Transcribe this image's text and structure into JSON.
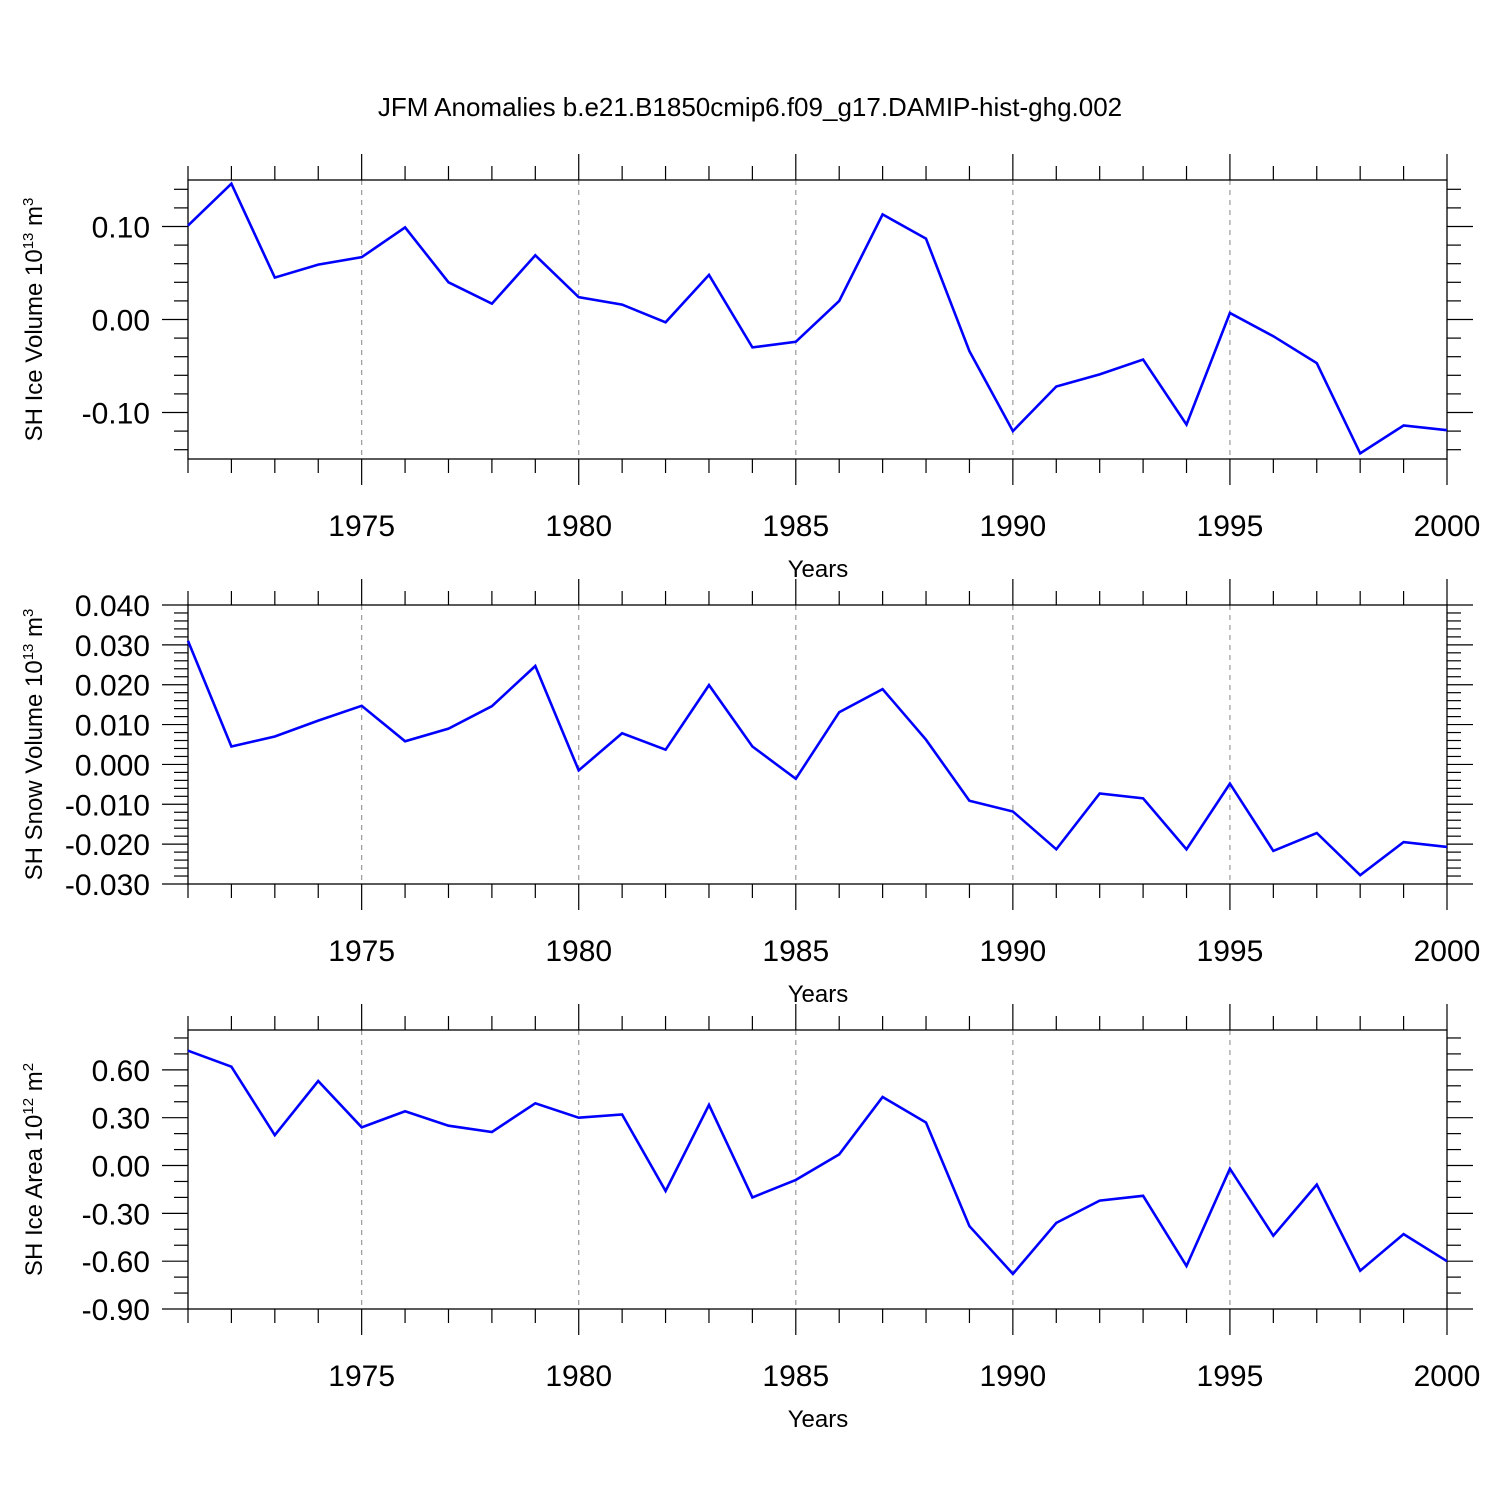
{
  "title": "JFM Anomalies b.e21.B1850cmip6.f09_g17.DAMIP-hist-ghg.002",
  "colors": {
    "line": "#0000ff",
    "grid": "#9a9a9a",
    "axis": "#000000"
  },
  "chart_data": [
    {
      "type": "line",
      "ylabel": "SH Ice Volume 10",
      "ylabel_exp": "13",
      "ylabel_unit": " m",
      "ylabel_unit_exp": "3",
      "xlabel": "Years",
      "xlim": [
        1971,
        2000
      ],
      "ylim": [
        -0.15,
        0.15
      ],
      "yticks": [
        -0.1,
        0.0,
        0.1
      ],
      "ytick_labels": [
        "-0.10",
        "0.00",
        "0.10"
      ],
      "yminor_step": 0.02,
      "xticks": [
        1975,
        1980,
        1985,
        1990,
        1995,
        2000
      ],
      "xtick_labels": [
        "1975",
        "1980",
        "1985",
        "1990",
        "1995",
        "2000"
      ],
      "grid": "vertical dashed at major x ticks",
      "series": [
        {
          "x": [
            1971,
            1972,
            1973,
            1974,
            1975,
            1976,
            1977,
            1978,
            1979,
            1980,
            1981,
            1982,
            1983,
            1984,
            1985,
            1986,
            1987,
            1988,
            1989,
            1990,
            1991,
            1992,
            1993,
            1994,
            1995,
            1996,
            1997,
            1998,
            1999,
            2000
          ],
          "values": [
            0.101,
            0.146,
            0.045,
            0.059,
            0.067,
            0.099,
            0.04,
            0.017,
            0.069,
            0.024,
            0.016,
            -0.003,
            0.048,
            -0.03,
            -0.024,
            0.02,
            0.113,
            0.087,
            -0.034,
            -0.12,
            -0.072,
            -0.059,
            -0.043,
            -0.113,
            0.007,
            -0.018,
            -0.047,
            -0.144,
            -0.114,
            -0.119
          ]
        }
      ]
    },
    {
      "type": "line",
      "ylabel": "SH Snow Volume 10",
      "ylabel_exp": "13",
      "ylabel_unit": " m",
      "ylabel_unit_exp": "3",
      "xlabel": "Years",
      "xlim": [
        1971,
        2000
      ],
      "ylim": [
        -0.03,
        0.04
      ],
      "yticks": [
        -0.03,
        -0.02,
        -0.01,
        0.0,
        0.01,
        0.02,
        0.03,
        0.04
      ],
      "ytick_labels": [
        "-0.030",
        "-0.020",
        "-0.010",
        "0.000",
        "0.010",
        "0.020",
        "0.030",
        "0.040"
      ],
      "yminor_step": 0.002,
      "xticks": [
        1975,
        1980,
        1985,
        1990,
        1995,
        2000
      ],
      "xtick_labels": [
        "1975",
        "1980",
        "1985",
        "1990",
        "1995",
        "2000"
      ],
      "grid": "vertical dashed at major x ticks",
      "series": [
        {
          "x": [
            1971,
            1972,
            1973,
            1974,
            1975,
            1976,
            1977,
            1978,
            1979,
            1980,
            1981,
            1982,
            1983,
            1984,
            1985,
            1986,
            1987,
            1988,
            1989,
            1990,
            1991,
            1992,
            1993,
            1994,
            1995,
            1996,
            1997,
            1998,
            1999,
            2000
          ],
          "values": [
            0.031,
            0.0045,
            0.007,
            0.011,
            0.0147,
            0.0058,
            0.009,
            0.0146,
            0.0247,
            -0.0015,
            0.0078,
            0.0037,
            0.0199,
            0.0045,
            -0.0036,
            0.0131,
            0.0189,
            0.0062,
            -0.0091,
            -0.0118,
            -0.0213,
            -0.0073,
            -0.0085,
            -0.0213,
            -0.0048,
            -0.0217,
            -0.0172,
            -0.0278,
            -0.0195,
            -0.0207
          ]
        }
      ]
    },
    {
      "type": "line",
      "ylabel": "SH Ice Area 10",
      "ylabel_exp": "12",
      "ylabel_unit": " m",
      "ylabel_unit_exp": "2",
      "xlabel": "Years",
      "xlim": [
        1971,
        2000
      ],
      "ylim": [
        -0.9,
        0.85
      ],
      "yticks": [
        -0.9,
        -0.6,
        -0.3,
        0.0,
        0.3,
        0.6
      ],
      "ytick_labels": [
        "-0.90",
        "-0.60",
        "-0.30",
        "0.00",
        "0.30",
        "0.60"
      ],
      "yminor_step": 0.1,
      "xticks": [
        1975,
        1980,
        1985,
        1990,
        1995,
        2000
      ],
      "xtick_labels": [
        "1975",
        "1980",
        "1985",
        "1990",
        "1995",
        "2000"
      ],
      "grid": "vertical dashed at major x ticks",
      "series": [
        {
          "x": [
            1971,
            1972,
            1973,
            1974,
            1975,
            1976,
            1977,
            1978,
            1979,
            1980,
            1981,
            1982,
            1983,
            1984,
            1985,
            1986,
            1987,
            1988,
            1989,
            1990,
            1991,
            1992,
            1993,
            1994,
            1995,
            1996,
            1997,
            1998,
            1999,
            2000
          ],
          "values": [
            0.72,
            0.62,
            0.19,
            0.53,
            0.24,
            0.34,
            0.25,
            0.21,
            0.39,
            0.3,
            0.32,
            -0.16,
            0.38,
            -0.2,
            -0.09,
            0.07,
            0.43,
            0.27,
            -0.38,
            -0.68,
            -0.36,
            -0.22,
            -0.19,
            -0.63,
            -0.02,
            -0.44,
            -0.12,
            -0.66,
            -0.43,
            -0.6
          ]
        }
      ]
    }
  ]
}
